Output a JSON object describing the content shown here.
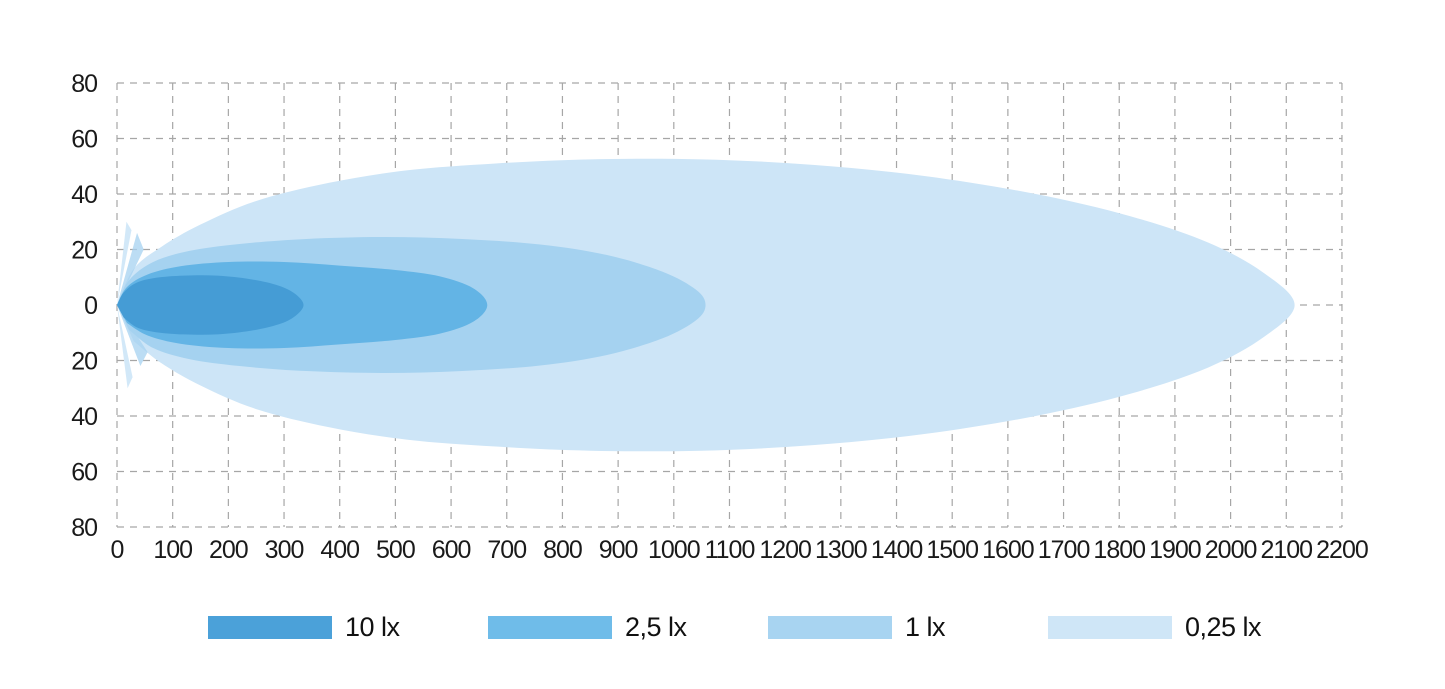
{
  "chart_data": {
    "type": "area",
    "title": "",
    "xlabel": "",
    "ylabel": "",
    "xlim": [
      0,
      2200
    ],
    "ylim": [
      -80,
      80
    ],
    "grid": "dashed",
    "legend_position": "bottom",
    "x_ticks": [
      0,
      100,
      200,
      300,
      400,
      500,
      600,
      700,
      800,
      900,
      1000,
      1100,
      1200,
      1300,
      1400,
      1500,
      1600,
      1700,
      1800,
      1900,
      2000,
      2100,
      2200
    ],
    "y_ticks": [
      {
        "value": 80,
        "label": "80"
      },
      {
        "value": 60,
        "label": "60"
      },
      {
        "value": 40,
        "label": "40"
      },
      {
        "value": 20,
        "label": "20"
      },
      {
        "value": 0,
        "label": "0"
      },
      {
        "value": -20,
        "label": "20"
      },
      {
        "value": -40,
        "label": "40"
      },
      {
        "value": -60,
        "label": "60"
      },
      {
        "value": -80,
        "label": "80"
      }
    ],
    "series": [
      {
        "name": "0,25 lx",
        "lux": 0.25,
        "color": "#CDE5F7",
        "max_distance": 2115,
        "max_half_width": 52.5,
        "upper_boundary": [
          [
            0,
            0
          ],
          [
            30,
            13
          ],
          [
            80,
            21
          ],
          [
            150,
            29
          ],
          [
            250,
            37.5
          ],
          [
            380,
            44
          ],
          [
            520,
            48.5
          ],
          [
            680,
            51
          ],
          [
            850,
            52.5
          ],
          [
            1050,
            52.5
          ],
          [
            1250,
            50.5
          ],
          [
            1450,
            46.5
          ],
          [
            1650,
            40
          ],
          [
            1820,
            32
          ],
          [
            1960,
            22.5
          ],
          [
            2060,
            11.5
          ],
          [
            2115,
            0
          ]
        ]
      },
      {
        "name": "1 lx",
        "lux": 1,
        "color": "#A5D2F0",
        "max_distance": 1057,
        "max_half_width": 24.5,
        "upper_boundary": [
          [
            0,
            0
          ],
          [
            22,
            9
          ],
          [
            65,
            15.5
          ],
          [
            130,
            19.5
          ],
          [
            220,
            22
          ],
          [
            340,
            23.8
          ],
          [
            480,
            24.5
          ],
          [
            620,
            23.8
          ],
          [
            760,
            21.8
          ],
          [
            880,
            18
          ],
          [
            980,
            12
          ],
          [
            1040,
            5.5
          ],
          [
            1057,
            0
          ]
        ]
      },
      {
        "name": "2,5 lx",
        "lux": 2.5,
        "color": "#63B4E5",
        "max_distance": 665,
        "max_half_width": 15.5,
        "upper_boundary": [
          [
            0,
            0
          ],
          [
            18,
            6.5
          ],
          [
            55,
            11
          ],
          [
            115,
            14
          ],
          [
            200,
            15.5
          ],
          [
            300,
            15.5
          ],
          [
            400,
            14.2
          ],
          [
            500,
            12.6
          ],
          [
            580,
            10.3
          ],
          [
            640,
            6
          ],
          [
            665,
            0
          ]
        ]
      },
      {
        "name": "10 lx",
        "lux": 10,
        "color": "#459CD5",
        "max_distance": 335,
        "max_half_width": 10.6,
        "upper_boundary": [
          [
            0,
            0
          ],
          [
            12,
            4.5
          ],
          [
            35,
            8
          ],
          [
            70,
            9.8
          ],
          [
            120,
            10.6
          ],
          [
            180,
            10.6
          ],
          [
            240,
            9.3
          ],
          [
            290,
            7
          ],
          [
            320,
            4
          ],
          [
            335,
            0
          ]
        ]
      }
    ],
    "flares": [
      {
        "points": [
          [
            0,
            0
          ],
          [
            48,
            20
          ],
          [
            36,
            26
          ]
        ],
        "color": "#A5D2F0",
        "opacity": 0.75
      },
      {
        "points": [
          [
            0,
            0
          ],
          [
            26,
            27
          ],
          [
            17,
            30
          ]
        ],
        "color": "#CDE5F7",
        "opacity": 0.9
      },
      {
        "points": [
          [
            0,
            0
          ],
          [
            55,
            -17
          ],
          [
            42,
            -22
          ]
        ],
        "color": "#A5D2F0",
        "opacity": 0.75
      },
      {
        "points": [
          [
            0,
            0
          ],
          [
            28,
            -26
          ],
          [
            19,
            -30
          ]
        ],
        "color": "#CDE5F7",
        "opacity": 0.9
      }
    ]
  },
  "legend": {
    "items": [
      {
        "label": "10 lx",
        "color": "#4BA1D9"
      },
      {
        "label": "2,5 lx",
        "color": "#6FBCE9"
      },
      {
        "label": "1 lx",
        "color": "#A8D4F1"
      },
      {
        "label": "0,25 lx",
        "color": "#CFE6F7"
      }
    ]
  },
  "colors": {
    "background": "#FFFFFF",
    "grid": "#A6A6A6",
    "text": "#1A1A1A"
  }
}
